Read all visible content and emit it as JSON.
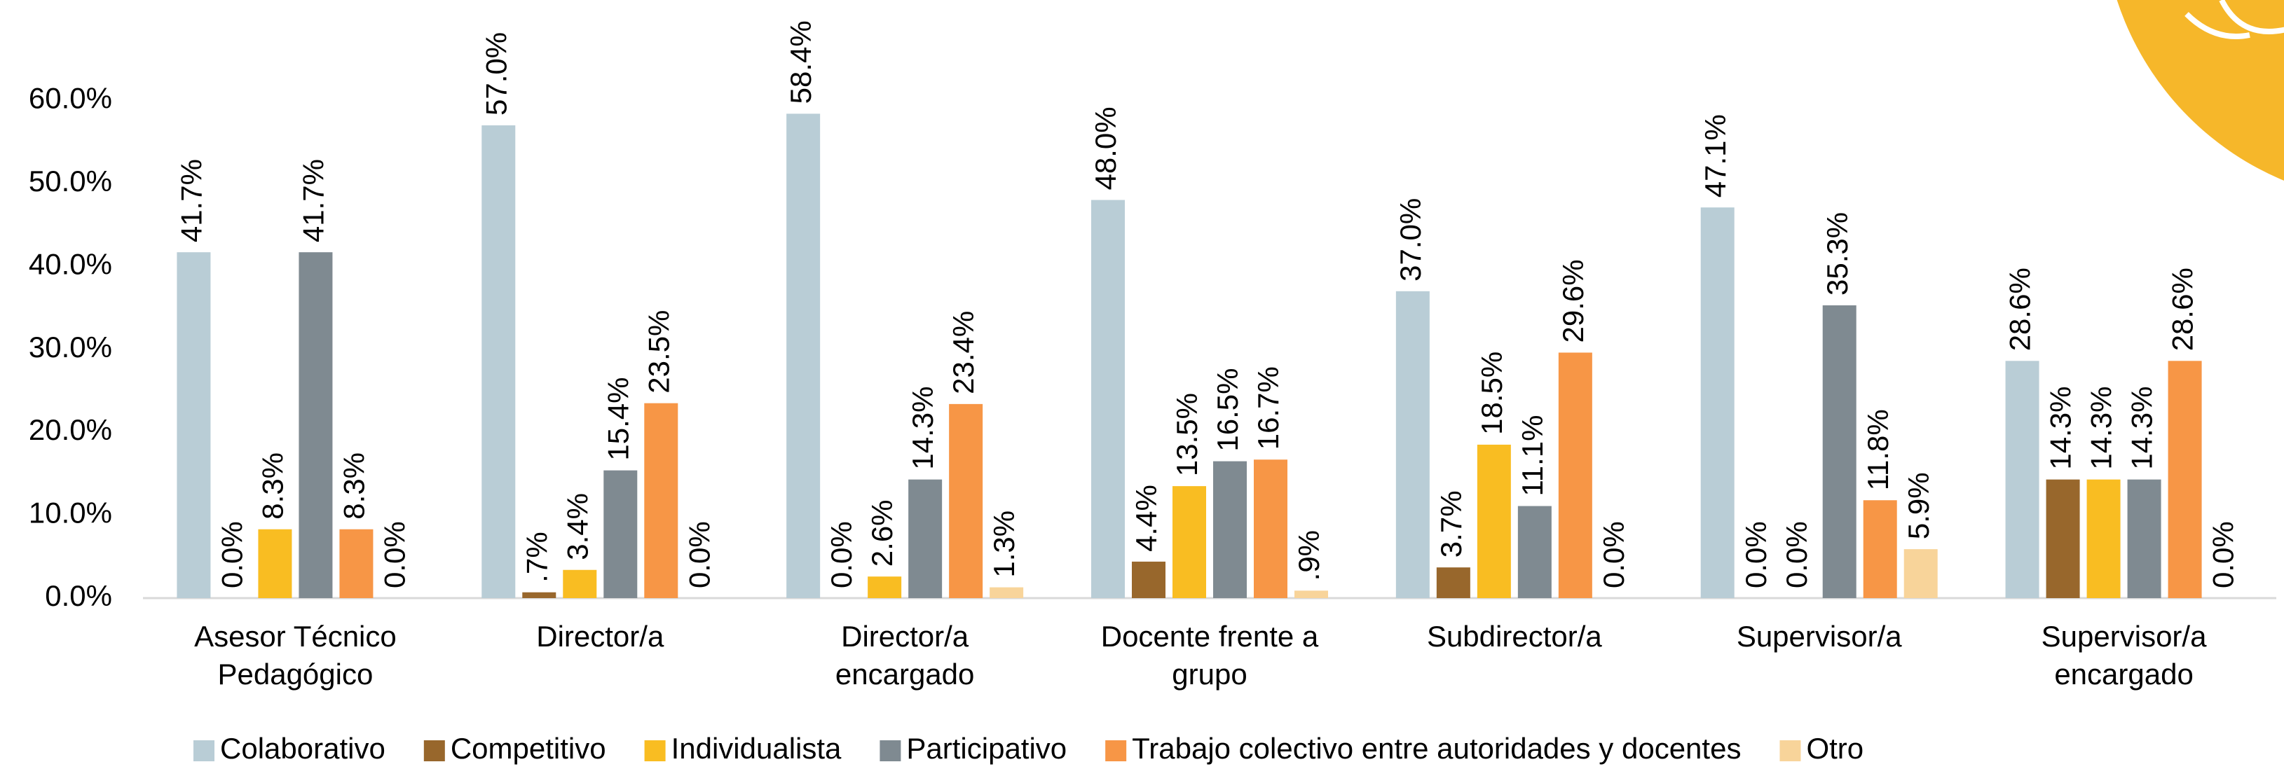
{
  "chart_data": {
    "type": "bar",
    "categories": [
      "Asesor Técnico\nPedagógico",
      "Director/a",
      "Director/a\nencargado",
      "Docente frente a\ngrupo",
      "Subdirector/a",
      "Supervisor/a",
      "Supervisor/a\nencargado"
    ],
    "series": [
      {
        "name": "Colaborativo",
        "color": "#b9cdd6",
        "values": [
          41.7,
          57.0,
          58.4,
          48.0,
          37.0,
          47.1,
          28.6
        ],
        "value_labels": [
          "41.7%",
          "57.0%",
          "58.4%",
          "48.0%",
          "37.0%",
          "47.1%",
          "28.6%"
        ]
      },
      {
        "name": "Competitivo",
        "color": "#98672c",
        "values": [
          0.0,
          0.7,
          0.0,
          4.4,
          3.7,
          0.0,
          14.3
        ],
        "value_labels": [
          "0.0%",
          ".7%",
          "0.0%",
          "4.4%",
          "3.7%",
          "0.0%",
          "14.3%"
        ]
      },
      {
        "name": "Individualista",
        "color": "#f9bd22",
        "values": [
          8.3,
          3.4,
          2.6,
          13.5,
          18.5,
          0.0,
          14.3
        ],
        "value_labels": [
          "8.3%",
          "3.4%",
          "2.6%",
          "13.5%",
          "18.5%",
          "0.0%",
          "14.3%"
        ]
      },
      {
        "name": "Participativo",
        "color": "#7f8a91",
        "values": [
          41.7,
          15.4,
          14.3,
          16.5,
          11.1,
          35.3,
          14.3
        ],
        "value_labels": [
          "41.7%",
          "15.4%",
          "14.3%",
          "16.5%",
          "11.1%",
          "35.3%",
          "14.3%"
        ]
      },
      {
        "name": "Trabajo colectivo entre autoridades y docentes",
        "color": "#f79646",
        "values": [
          8.3,
          23.5,
          23.4,
          16.7,
          29.6,
          11.8,
          28.6
        ],
        "value_labels": [
          "8.3%",
          "23.5%",
          "23.4%",
          "16.7%",
          "29.6%",
          "11.8%",
          "28.6%"
        ]
      },
      {
        "name": "Otro",
        "color": "#f8d49a",
        "values": [
          0.0,
          0.0,
          1.3,
          0.9,
          0.0,
          5.9,
          0.0
        ],
        "value_labels": [
          "0.0%",
          "0.0%",
          "1.3%",
          ".9%",
          "0.0%",
          "5.9%",
          "0.0%"
        ]
      }
    ],
    "ylim": [
      0,
      70
    ],
    "yticks": [
      {
        "value": 0,
        "label": "0.0%"
      },
      {
        "value": 10,
        "label": "10.0%"
      },
      {
        "value": 20,
        "label": "20.0%"
      },
      {
        "value": 30,
        "label": "30.0%"
      },
      {
        "value": 40,
        "label": "40.0%"
      },
      {
        "value": 50,
        "label": "50.0%"
      },
      {
        "value": 60,
        "label": "60.0%"
      }
    ],
    "grid": false,
    "legend": "bottom"
  }
}
